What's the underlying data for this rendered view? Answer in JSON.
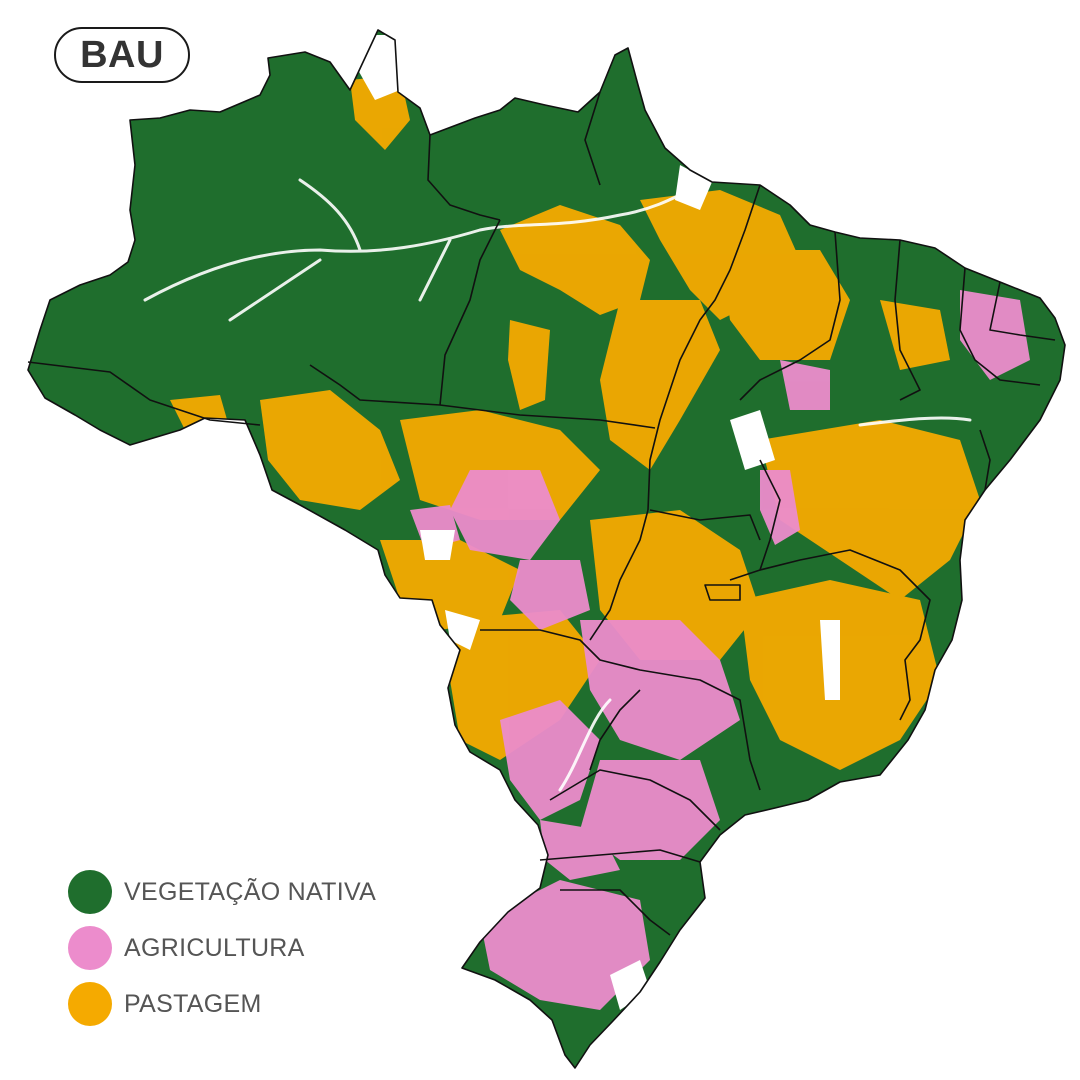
{
  "scenario_badge": "BAU",
  "colors": {
    "native_vegetation": "#1f6e2d",
    "agriculture": "#ec8ccc",
    "pasture": "#f5aa00",
    "border": "#111111",
    "background": "#ffffff"
  },
  "legend": [
    {
      "label": "VEGETAÇÃO NATIVA",
      "color": "#1f6e2d"
    },
    {
      "label": "AGRICULTURA",
      "color": "#ec8ccc"
    },
    {
      "label": "PASTAGEM",
      "color": "#f5aa00"
    }
  ]
}
